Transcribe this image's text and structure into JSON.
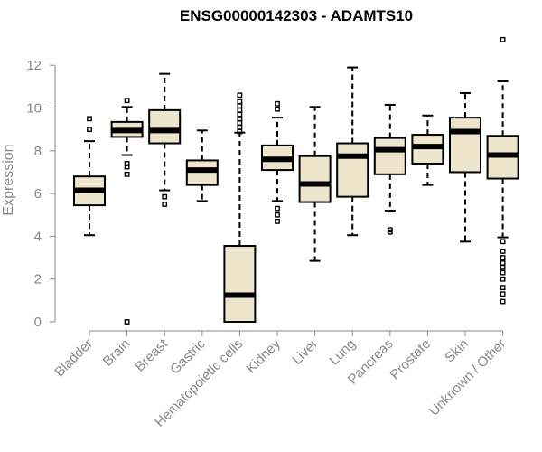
{
  "chart_data": {
    "type": "boxplot",
    "title": "ENSG00000142303 - ADAMTS10",
    "xlabel": "",
    "ylabel": "Expression",
    "ylim": [
      0,
      13.2
    ],
    "yticks": [
      0,
      2,
      4,
      6,
      8,
      10,
      12
    ],
    "grid": false,
    "colors": {
      "box_fill": "#ede5cc",
      "box_stroke": "#000000",
      "median": "#000000",
      "axis": "#888888",
      "tick_text": "#888888",
      "title": "#000000"
    },
    "categories": [
      "Bladder",
      "Brain",
      "Breast",
      "Gastric",
      "Hematopoietic cells",
      "Kidney",
      "Liver",
      "Lung",
      "Pancreas",
      "Prostate",
      "Skin",
      "Unknown / Other"
    ],
    "boxes": [
      {
        "category": "Bladder",
        "whisker_low": 4.05,
        "q1": 5.45,
        "median": 6.15,
        "q3": 6.8,
        "whisker_high": 8.45,
        "outliers": [
          9.0,
          9.5
        ]
      },
      {
        "category": "Brain",
        "whisker_low": 7.8,
        "q1": 8.65,
        "median": 8.95,
        "q3": 9.35,
        "whisker_high": 10.05,
        "outliers": [
          10.35,
          7.4,
          7.25,
          6.9,
          0.0
        ]
      },
      {
        "category": "Breast",
        "whisker_low": 6.15,
        "q1": 8.35,
        "median": 8.95,
        "q3": 9.9,
        "whisker_high": 11.6,
        "outliers": [
          5.85,
          5.5
        ]
      },
      {
        "category": "Gastric",
        "whisker_low": 5.65,
        "q1": 6.4,
        "median": 7.1,
        "q3": 7.55,
        "whisker_high": 8.95,
        "outliers": []
      },
      {
        "category": "Hematopoietic cells",
        "whisker_low": 0.0,
        "q1": 0.0,
        "median": 1.25,
        "q3": 3.55,
        "whisker_high": 8.85,
        "outliers": [
          8.9,
          9.1,
          9.3,
          9.5,
          9.7,
          9.9,
          10.1,
          10.3,
          10.6
        ]
      },
      {
        "category": "Kidney",
        "whisker_low": 5.65,
        "q1": 7.1,
        "median": 7.6,
        "q3": 8.25,
        "whisker_high": 9.55,
        "outliers": [
          9.95,
          10.2,
          5.3,
          5.0,
          4.7
        ]
      },
      {
        "category": "Liver",
        "whisker_low": 2.85,
        "q1": 5.6,
        "median": 6.45,
        "q3": 7.75,
        "whisker_high": 10.05,
        "outliers": []
      },
      {
        "category": "Lung",
        "whisker_low": 4.05,
        "q1": 5.85,
        "median": 7.75,
        "q3": 8.35,
        "whisker_high": 11.9,
        "outliers": []
      },
      {
        "category": "Pancreas",
        "whisker_low": 5.2,
        "q1": 6.9,
        "median": 8.05,
        "q3": 8.6,
        "whisker_high": 10.15,
        "outliers": [
          4.3,
          4.2
        ]
      },
      {
        "category": "Prostate",
        "whisker_low": 6.4,
        "q1": 7.4,
        "median": 8.2,
        "q3": 8.75,
        "whisker_high": 9.65,
        "outliers": []
      },
      {
        "category": "Skin",
        "whisker_low": 3.75,
        "q1": 7.0,
        "median": 8.9,
        "q3": 9.55,
        "whisker_high": 10.7,
        "outliers": []
      },
      {
        "category": "Unknown / Other",
        "whisker_low": 3.95,
        "q1": 6.7,
        "median": 7.8,
        "q3": 8.7,
        "whisker_high": 11.25,
        "outliers": [
          13.2,
          3.75,
          3.3,
          3.0,
          2.75,
          2.55,
          2.3,
          2.0,
          1.6,
          1.3,
          0.95
        ]
      }
    ]
  }
}
